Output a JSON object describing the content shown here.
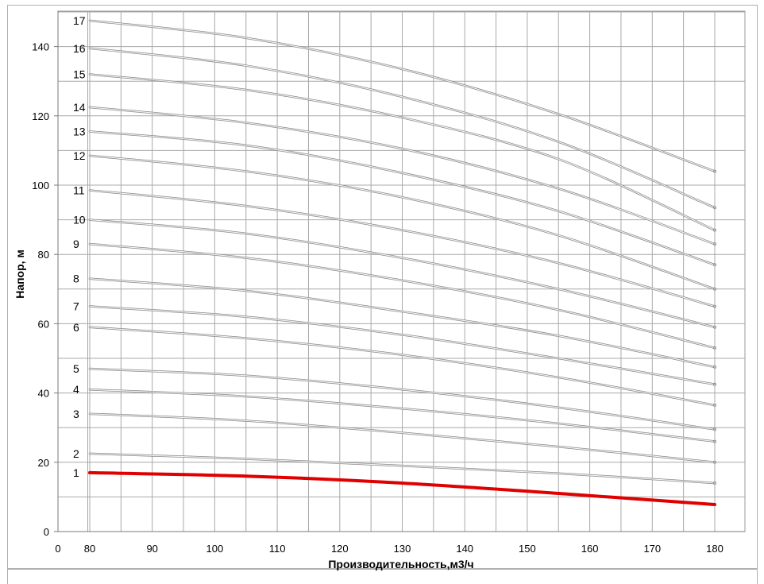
{
  "chart_data": {
    "type": "line",
    "title": "",
    "xlabel": "Производительность,м3/ч",
    "ylabel": "Напор, м",
    "xlim": [
      0,
      180
    ],
    "ylim": [
      0,
      150
    ],
    "x_ticks": [
      "0",
      "80",
      "90",
      "100",
      "110",
      "120",
      "130",
      "140",
      "150",
      "160",
      "170",
      "180"
    ],
    "y_ticks": [
      "0",
      "20",
      "40",
      "60",
      "80",
      "100",
      "120",
      "140"
    ],
    "grid": true,
    "legend": "none",
    "highlight_color": "#e00000",
    "curve_color": "#8a8a8a",
    "x": [
      80,
      105,
      130,
      155,
      180
    ],
    "series": [
      {
        "name": "1",
        "values": [
          17.0,
          16.0,
          14.0,
          11.0,
          7.8
        ]
      },
      {
        "name": "2",
        "values": [
          22.5,
          21.0,
          19.0,
          16.8,
          14.0
        ]
      },
      {
        "name": "3",
        "values": [
          34.0,
          32.0,
          28.5,
          24.5,
          20.0
        ]
      },
      {
        "name": "4",
        "values": [
          41.0,
          39.0,
          35.5,
          31.2,
          26.0
        ]
      },
      {
        "name": "5",
        "values": [
          47.0,
          45.0,
          41.0,
          35.8,
          29.5
        ]
      },
      {
        "name": "6",
        "values": [
          59.0,
          55.8,
          51.0,
          44.5,
          36.5
        ]
      },
      {
        "name": "7",
        "values": [
          65.0,
          62.0,
          56.8,
          50.0,
          42.5
        ]
      },
      {
        "name": "8",
        "values": [
          73.0,
          69.5,
          63.5,
          56.5,
          47.5
        ]
      },
      {
        "name": "9",
        "values": [
          83.0,
          79.0,
          72.5,
          64.0,
          53.0
        ]
      },
      {
        "name": "10",
        "values": [
          90.0,
          86.0,
          79.0,
          70.0,
          59.0
        ]
      },
      {
        "name": "11",
        "values": [
          98.5,
          94.0,
          87.0,
          77.5,
          65.0
        ]
      },
      {
        "name": "12",
        "values": [
          108.5,
          104.0,
          96.5,
          85.5,
          70.0
        ]
      },
      {
        "name": "13",
        "values": [
          115.5,
          111.5,
          103.5,
          92.5,
          77.0
        ]
      },
      {
        "name": "14",
        "values": [
          122.5,
          118.0,
          110.5,
          99.0,
          83.0
        ]
      },
      {
        "name": "15",
        "values": [
          132.0,
          127.5,
          119.5,
          107.5,
          87.0
        ]
      },
      {
        "name": "16",
        "values": [
          139.5,
          134.5,
          125.5,
          112.5,
          93.5
        ]
      },
      {
        "name": "17",
        "values": [
          147.5,
          142.5,
          133.5,
          120.5,
          104.0
        ]
      }
    ]
  }
}
